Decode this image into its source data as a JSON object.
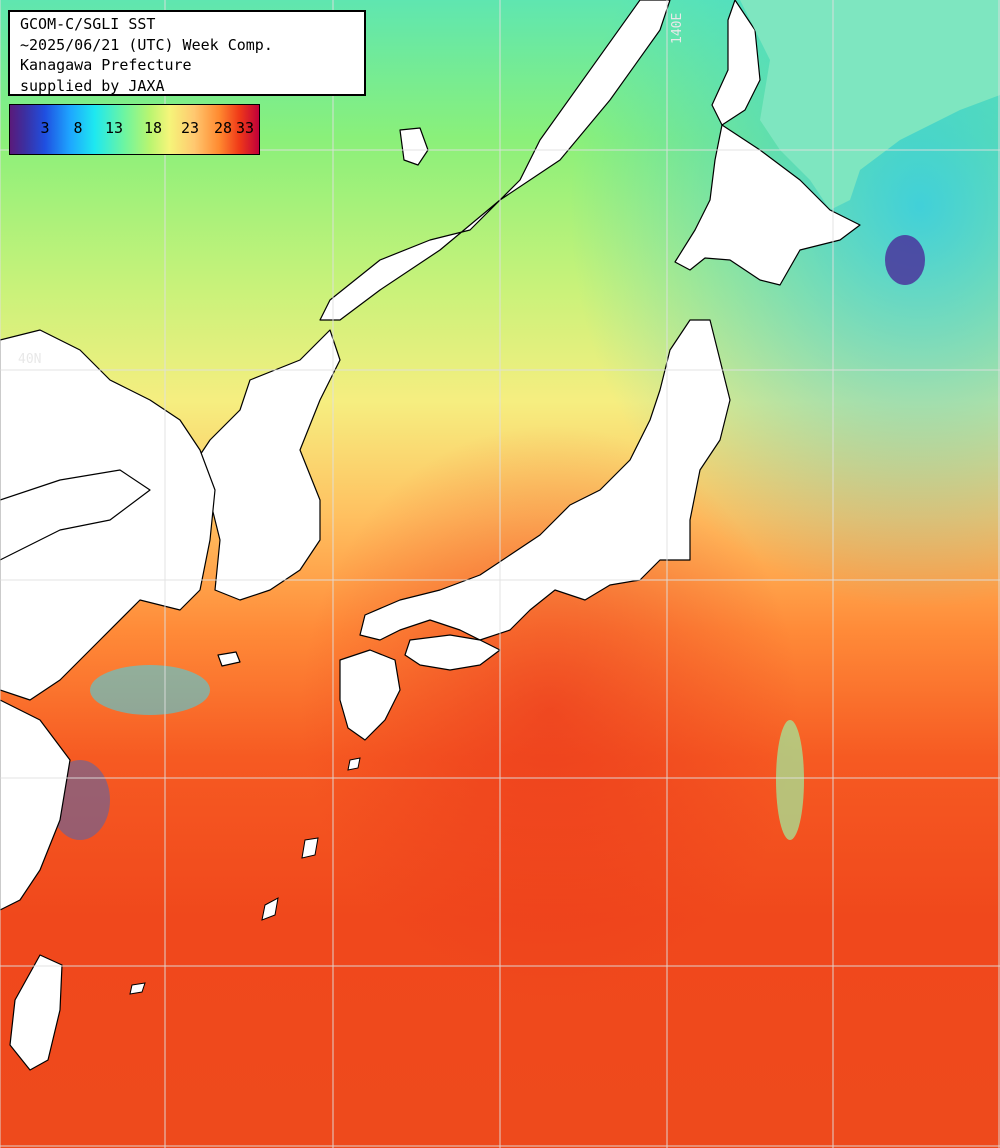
{
  "header": {
    "line1": "GCOM-C/SGLI SST",
    "line2": "~2025/06/21 (UTC) Week Comp.",
    "line3": "Kanagawa Prefecture",
    "line4": "supplied by JAXA"
  },
  "colorbar": {
    "ticks": [
      "3",
      "8",
      "13",
      "18",
      "23",
      "28",
      "33"
    ]
  },
  "grid_labels": {
    "lat": "40N",
    "lon": "140E"
  },
  "colors": {
    "land": "#ffffff",
    "coast": "#000000",
    "grid": "#e0e0e0",
    "sea_north": "#88f090",
    "sea_mid": "#ffd070",
    "sea_south": "#f04a1a"
  }
}
